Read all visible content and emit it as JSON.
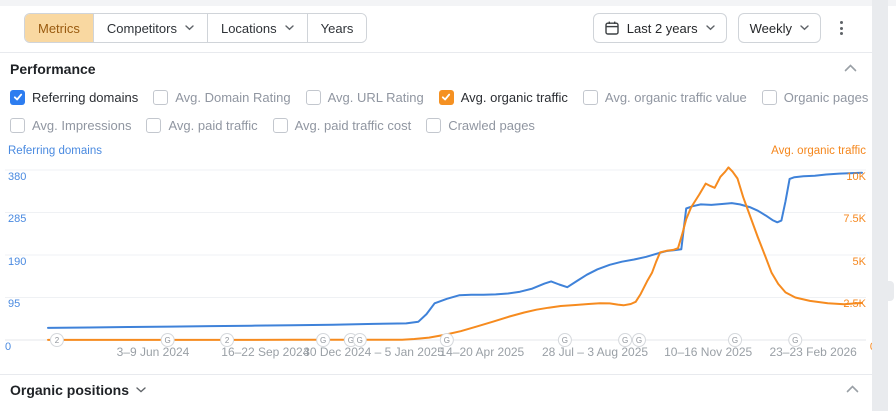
{
  "toolbar": {
    "segments": [
      {
        "label": "Metrics",
        "active": true,
        "caret": false
      },
      {
        "label": "Competitors",
        "active": false,
        "caret": true
      },
      {
        "label": "Locations",
        "active": false,
        "caret": true
      },
      {
        "label": "Years",
        "active": false,
        "caret": false
      }
    ],
    "date_range_label": "Last 2 years",
    "granularity_label": "Weekly"
  },
  "performance": {
    "title": "Performance",
    "metrics_row1": [
      {
        "label": "Referring domains",
        "checked": true,
        "color": "#2d7df0"
      },
      {
        "label": "Avg. Domain Rating",
        "checked": false
      },
      {
        "label": "Avg. URL Rating",
        "checked": false
      },
      {
        "label": "Avg. organic traffic",
        "checked": true,
        "color": "#f59122"
      },
      {
        "label": "Avg. organic traffic value",
        "checked": false
      },
      {
        "label": "Organic pages",
        "checked": false
      }
    ],
    "metrics_row2": [
      {
        "label": "Avg. Impressions",
        "checked": false
      },
      {
        "label": "Avg. paid traffic",
        "checked": false
      },
      {
        "label": "Avg. paid traffic cost",
        "checked": false
      },
      {
        "label": "Crawled pages",
        "checked": false
      }
    ]
  },
  "chart_data": {
    "type": "line",
    "title": "Performance",
    "grid": true,
    "left_axis": {
      "title": "Referring domains",
      "color": "#4a8ae0",
      "max": 380,
      "ticks": [
        {
          "label": "0",
          "value": 0
        },
        {
          "label": "95",
          "value": 95
        },
        {
          "label": "190",
          "value": 190
        },
        {
          "label": "285",
          "value": 285
        },
        {
          "label": "380",
          "value": 380
        }
      ]
    },
    "right_axis": {
      "title": "Avg. organic traffic",
      "color": "#f5871d",
      "max": 10000,
      "ticks": [
        {
          "label": "0",
          "value": 0
        },
        {
          "label": "2.5K",
          "value": 2500
        },
        {
          "label": "5K",
          "value": 5000
        },
        {
          "label": "7.5K",
          "value": 7500
        },
        {
          "label": "10K",
          "value": 10000
        }
      ]
    },
    "x_axis": {
      "labels": [
        {
          "text": "3–9 Jun 2024",
          "f": 0.129
        },
        {
          "text": "16–22 Sep 2024",
          "f": 0.267
        },
        {
          "text": "30 Dec 2024 – 5 Jan 2025",
          "f": 0.4
        },
        {
          "text": "14–20 Apr 2025",
          "f": 0.533
        },
        {
          "text": "28 Jul – 3 Aug 2025",
          "f": 0.672
        },
        {
          "text": "10–16 Nov 2025",
          "f": 0.811
        },
        {
          "text": "23–23 Feb 2026",
          "f": 0.94
        }
      ]
    },
    "timeline_markers": [
      {
        "glyph": "2",
        "f": 0.011
      },
      {
        "glyph": "G",
        "f": 0.147
      },
      {
        "glyph": "2",
        "f": 0.22
      },
      {
        "glyph": "G",
        "f": 0.338
      },
      {
        "glyph": "G",
        "f": 0.372
      },
      {
        "glyph": "G",
        "f": 0.383
      },
      {
        "glyph": "G",
        "f": 0.49
      },
      {
        "glyph": "G",
        "f": 0.635
      },
      {
        "glyph": "G",
        "f": 0.709
      },
      {
        "glyph": "G",
        "f": 0.726
      },
      {
        "glyph": "G",
        "f": 0.844
      },
      {
        "glyph": "G",
        "f": 0.918
      }
    ],
    "series": [
      {
        "name": "Referring domains",
        "axis": "left",
        "color": "#3f82d9",
        "points": [
          [
            0,
            27
          ],
          [
            0.05,
            28
          ],
          [
            0.1,
            29
          ],
          [
            0.15,
            30
          ],
          [
            0.2,
            31
          ],
          [
            0.25,
            32
          ],
          [
            0.3,
            33
          ],
          [
            0.35,
            34
          ],
          [
            0.4,
            36
          ],
          [
            0.44,
            37
          ],
          [
            0.455,
            41
          ],
          [
            0.465,
            58
          ],
          [
            0.475,
            82
          ],
          [
            0.49,
            92
          ],
          [
            0.505,
            100
          ],
          [
            0.52,
            101
          ],
          [
            0.535,
            101
          ],
          [
            0.55,
            102
          ],
          [
            0.565,
            104
          ],
          [
            0.58,
            108
          ],
          [
            0.595,
            115
          ],
          [
            0.61,
            126
          ],
          [
            0.618,
            131
          ],
          [
            0.628,
            124
          ],
          [
            0.638,
            118
          ],
          [
            0.65,
            132
          ],
          [
            0.662,
            146
          ],
          [
            0.675,
            158
          ],
          [
            0.69,
            168
          ],
          [
            0.705,
            175
          ],
          [
            0.72,
            180
          ],
          [
            0.735,
            186
          ],
          [
            0.75,
            194
          ],
          [
            0.76,
            199
          ],
          [
            0.77,
            201
          ],
          [
            0.778,
            203
          ],
          [
            0.784,
            294
          ],
          [
            0.792,
            299
          ],
          [
            0.802,
            303
          ],
          [
            0.815,
            302
          ],
          [
            0.828,
            304
          ],
          [
            0.84,
            306
          ],
          [
            0.85,
            303
          ],
          [
            0.862,
            297
          ],
          [
            0.872,
            289
          ],
          [
            0.882,
            278
          ],
          [
            0.89,
            268
          ],
          [
            0.896,
            263
          ],
          [
            0.901,
            267
          ],
          [
            0.906,
            310
          ],
          [
            0.911,
            360
          ],
          [
            0.917,
            364
          ],
          [
            0.928,
            366
          ],
          [
            0.942,
            367
          ],
          [
            0.956,
            370
          ],
          [
            0.972,
            372
          ],
          [
            1,
            374
          ]
        ]
      },
      {
        "name": "Avg. organic traffic",
        "axis": "right",
        "color": "#f68b1f",
        "points": [
          [
            0,
            5
          ],
          [
            0.05,
            5
          ],
          [
            0.1,
            5
          ],
          [
            0.15,
            8
          ],
          [
            0.2,
            8
          ],
          [
            0.25,
            8
          ],
          [
            0.3,
            10
          ],
          [
            0.35,
            10
          ],
          [
            0.4,
            12
          ],
          [
            0.435,
            20
          ],
          [
            0.45,
            60
          ],
          [
            0.468,
            140
          ],
          [
            0.487,
            300
          ],
          [
            0.507,
            520
          ],
          [
            0.527,
            800
          ],
          [
            0.547,
            1080
          ],
          [
            0.567,
            1380
          ],
          [
            0.585,
            1620
          ],
          [
            0.6,
            1780
          ],
          [
            0.615,
            1900
          ],
          [
            0.63,
            2000
          ],
          [
            0.648,
            2060
          ],
          [
            0.664,
            2120
          ],
          [
            0.678,
            2160
          ],
          [
            0.69,
            2150
          ],
          [
            0.7,
            2080
          ],
          [
            0.707,
            2040
          ],
          [
            0.716,
            2120
          ],
          [
            0.722,
            2250
          ],
          [
            0.728,
            2700
          ],
          [
            0.736,
            3450
          ],
          [
            0.742,
            3950
          ],
          [
            0.747,
            4600
          ],
          [
            0.752,
            5150
          ],
          [
            0.76,
            5250
          ],
          [
            0.768,
            5300
          ],
          [
            0.774,
            5400
          ],
          [
            0.779,
            6200
          ],
          [
            0.784,
            7100
          ],
          [
            0.79,
            7800
          ],
          [
            0.8,
            8550
          ],
          [
            0.808,
            9200
          ],
          [
            0.814,
            9050
          ],
          [
            0.819,
            8950
          ],
          [
            0.826,
            9600
          ],
          [
            0.832,
            9900
          ],
          [
            0.836,
            10150
          ],
          [
            0.841,
            9900
          ],
          [
            0.847,
            9500
          ],
          [
            0.854,
            8400
          ],
          [
            0.862,
            7350
          ],
          [
            0.872,
            6050
          ],
          [
            0.881,
            4950
          ],
          [
            0.889,
            3950
          ],
          [
            0.897,
            3300
          ],
          [
            0.906,
            2800
          ],
          [
            0.918,
            2500
          ],
          [
            0.936,
            2300
          ],
          [
            0.958,
            2160
          ],
          [
            0.978,
            2100
          ],
          [
            1,
            2180
          ]
        ]
      }
    ]
  },
  "organic_positions": {
    "title": "Organic positions"
  }
}
